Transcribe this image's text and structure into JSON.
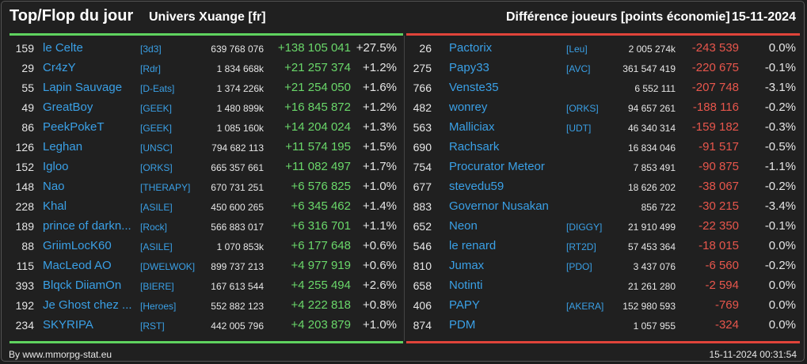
{
  "header": {
    "title": "Top/Flop du jour",
    "universe": "Univers Xuange [fr]",
    "metric": "Différence joueurs [points économie]",
    "date": "15-11-2024"
  },
  "colors": {
    "top": "#5fd35f",
    "flop": "#e0443a",
    "link": "#3aa0e6"
  },
  "top": [
    {
      "rank": "159",
      "name": "le Celte",
      "ally": "[3d3]",
      "points": "639 768 076",
      "delta": "+138 105 041",
      "pct": "+27.5%"
    },
    {
      "rank": "29",
      "name": "Cr4zY",
      "ally": "[Rdr]",
      "points": "1 834 668k",
      "delta": "+21 257 374",
      "pct": "+1.2%"
    },
    {
      "rank": "55",
      "name": "Lapin Sauvage",
      "ally": "[D-Eats]",
      "points": "1 374 226k",
      "delta": "+21 254 050",
      "pct": "+1.6%"
    },
    {
      "rank": "49",
      "name": "GreatBoy",
      "ally": "[GEEK]",
      "points": "1 480 899k",
      "delta": "+16 845 872",
      "pct": "+1.2%"
    },
    {
      "rank": "86",
      "name": "PeekPokeT",
      "ally": "[GEEK]",
      "points": "1 085 160k",
      "delta": "+14 204 024",
      "pct": "+1.3%"
    },
    {
      "rank": "126",
      "name": "Leghan",
      "ally": "[UNSC]",
      "points": "794 682 113",
      "delta": "+11 574 195",
      "pct": "+1.5%"
    },
    {
      "rank": "152",
      "name": "Igloo",
      "ally": "[ORKS]",
      "points": "665 357 661",
      "delta": "+11 082 497",
      "pct": "+1.7%"
    },
    {
      "rank": "148",
      "name": "Nao",
      "ally": "[THERAPY]",
      "points": "670 731 251",
      "delta": "+6 576 825",
      "pct": "+1.0%"
    },
    {
      "rank": "228",
      "name": "Khal",
      "ally": "[ASILE]",
      "points": "450 600 265",
      "delta": "+6 345 462",
      "pct": "+1.4%"
    },
    {
      "rank": "189",
      "name": "prince of darkn...",
      "ally": "[Rock]",
      "points": "566 883 017",
      "delta": "+6 316 701",
      "pct": "+1.1%"
    },
    {
      "rank": "88",
      "name": "GriimLocK60",
      "ally": "[ASILE]",
      "points": "1 070 853k",
      "delta": "+6 177 648",
      "pct": "+0.6%"
    },
    {
      "rank": "115",
      "name": "MacLeod AO",
      "ally": "[DWELWOK]",
      "points": "899 737 213",
      "delta": "+4 977 919",
      "pct": "+0.6%"
    },
    {
      "rank": "393",
      "name": "Blqck DiiamOn",
      "ally": "[BIERE]",
      "points": "167 613 544",
      "delta": "+4 255 494",
      "pct": "+2.6%"
    },
    {
      "rank": "192",
      "name": "Je Ghost chez ...",
      "ally": "[Heroes]",
      "points": "552 882 123",
      "delta": "+4 222 818",
      "pct": "+0.8%"
    },
    {
      "rank": "234",
      "name": "SKYRIPA",
      "ally": "[RST]",
      "points": "442 005 796",
      "delta": "+4 203 879",
      "pct": "+1.0%"
    }
  ],
  "flop": [
    {
      "rank": "26",
      "name": "Pactorix",
      "ally": "[Leu]",
      "points": "2 005 274k",
      "delta": "-243 539",
      "pct": "0.0%"
    },
    {
      "rank": "275",
      "name": "Papy33",
      "ally": "[AVC]",
      "points": "361 547 419",
      "delta": "-220 675",
      "pct": "-0.1%"
    },
    {
      "rank": "766",
      "name": "Venste35",
      "ally": "",
      "points": "6 552 111",
      "delta": "-207 748",
      "pct": "-3.1%"
    },
    {
      "rank": "482",
      "name": "wonrey",
      "ally": "[ORKS]",
      "points": "94 657 261",
      "delta": "-188 116",
      "pct": "-0.2%"
    },
    {
      "rank": "563",
      "name": "Malliciax",
      "ally": "[UDT]",
      "points": "46 340 314",
      "delta": "-159 182",
      "pct": "-0.3%"
    },
    {
      "rank": "690",
      "name": "Rachsark",
      "ally": "",
      "points": "16 834 046",
      "delta": "-91 517",
      "pct": "-0.5%"
    },
    {
      "rank": "754",
      "name": "Procurator Meteor",
      "ally": "",
      "points": "7 853 491",
      "delta": "-90 875",
      "pct": "-1.1%"
    },
    {
      "rank": "677",
      "name": "stevedu59",
      "ally": "",
      "points": "18 626 202",
      "delta": "-38 067",
      "pct": "-0.2%"
    },
    {
      "rank": "883",
      "name": "Governor Nusakan",
      "ally": "",
      "points": "856 722",
      "delta": "-30 215",
      "pct": "-3.4%"
    },
    {
      "rank": "652",
      "name": "Neon",
      "ally": "[DIGGY]",
      "points": "21 910 499",
      "delta": "-22 350",
      "pct": "-0.1%"
    },
    {
      "rank": "546",
      "name": "le renard",
      "ally": "[RT2D]",
      "points": "57 453 364",
      "delta": "-18 015",
      "pct": "0.0%"
    },
    {
      "rank": "810",
      "name": "Jumax",
      "ally": "[PDO]",
      "points": "3 437 076",
      "delta": "-6 560",
      "pct": "-0.2%"
    },
    {
      "rank": "658",
      "name": "Notinti",
      "ally": "",
      "points": "21 261 280",
      "delta": "-2 594",
      "pct": "0.0%"
    },
    {
      "rank": "406",
      "name": "PAPY",
      "ally": "[AKERA]",
      "points": "152 980 593",
      "delta": "-769",
      "pct": "0.0%"
    },
    {
      "rank": "874",
      "name": "PDM",
      "ally": "",
      "points": "1 057 955",
      "delta": "-324",
      "pct": "0.0%"
    }
  ],
  "footer": {
    "credit": "By www.mmorpg-stat.eu",
    "timestamp": "15-11-2024 00:31:54"
  }
}
